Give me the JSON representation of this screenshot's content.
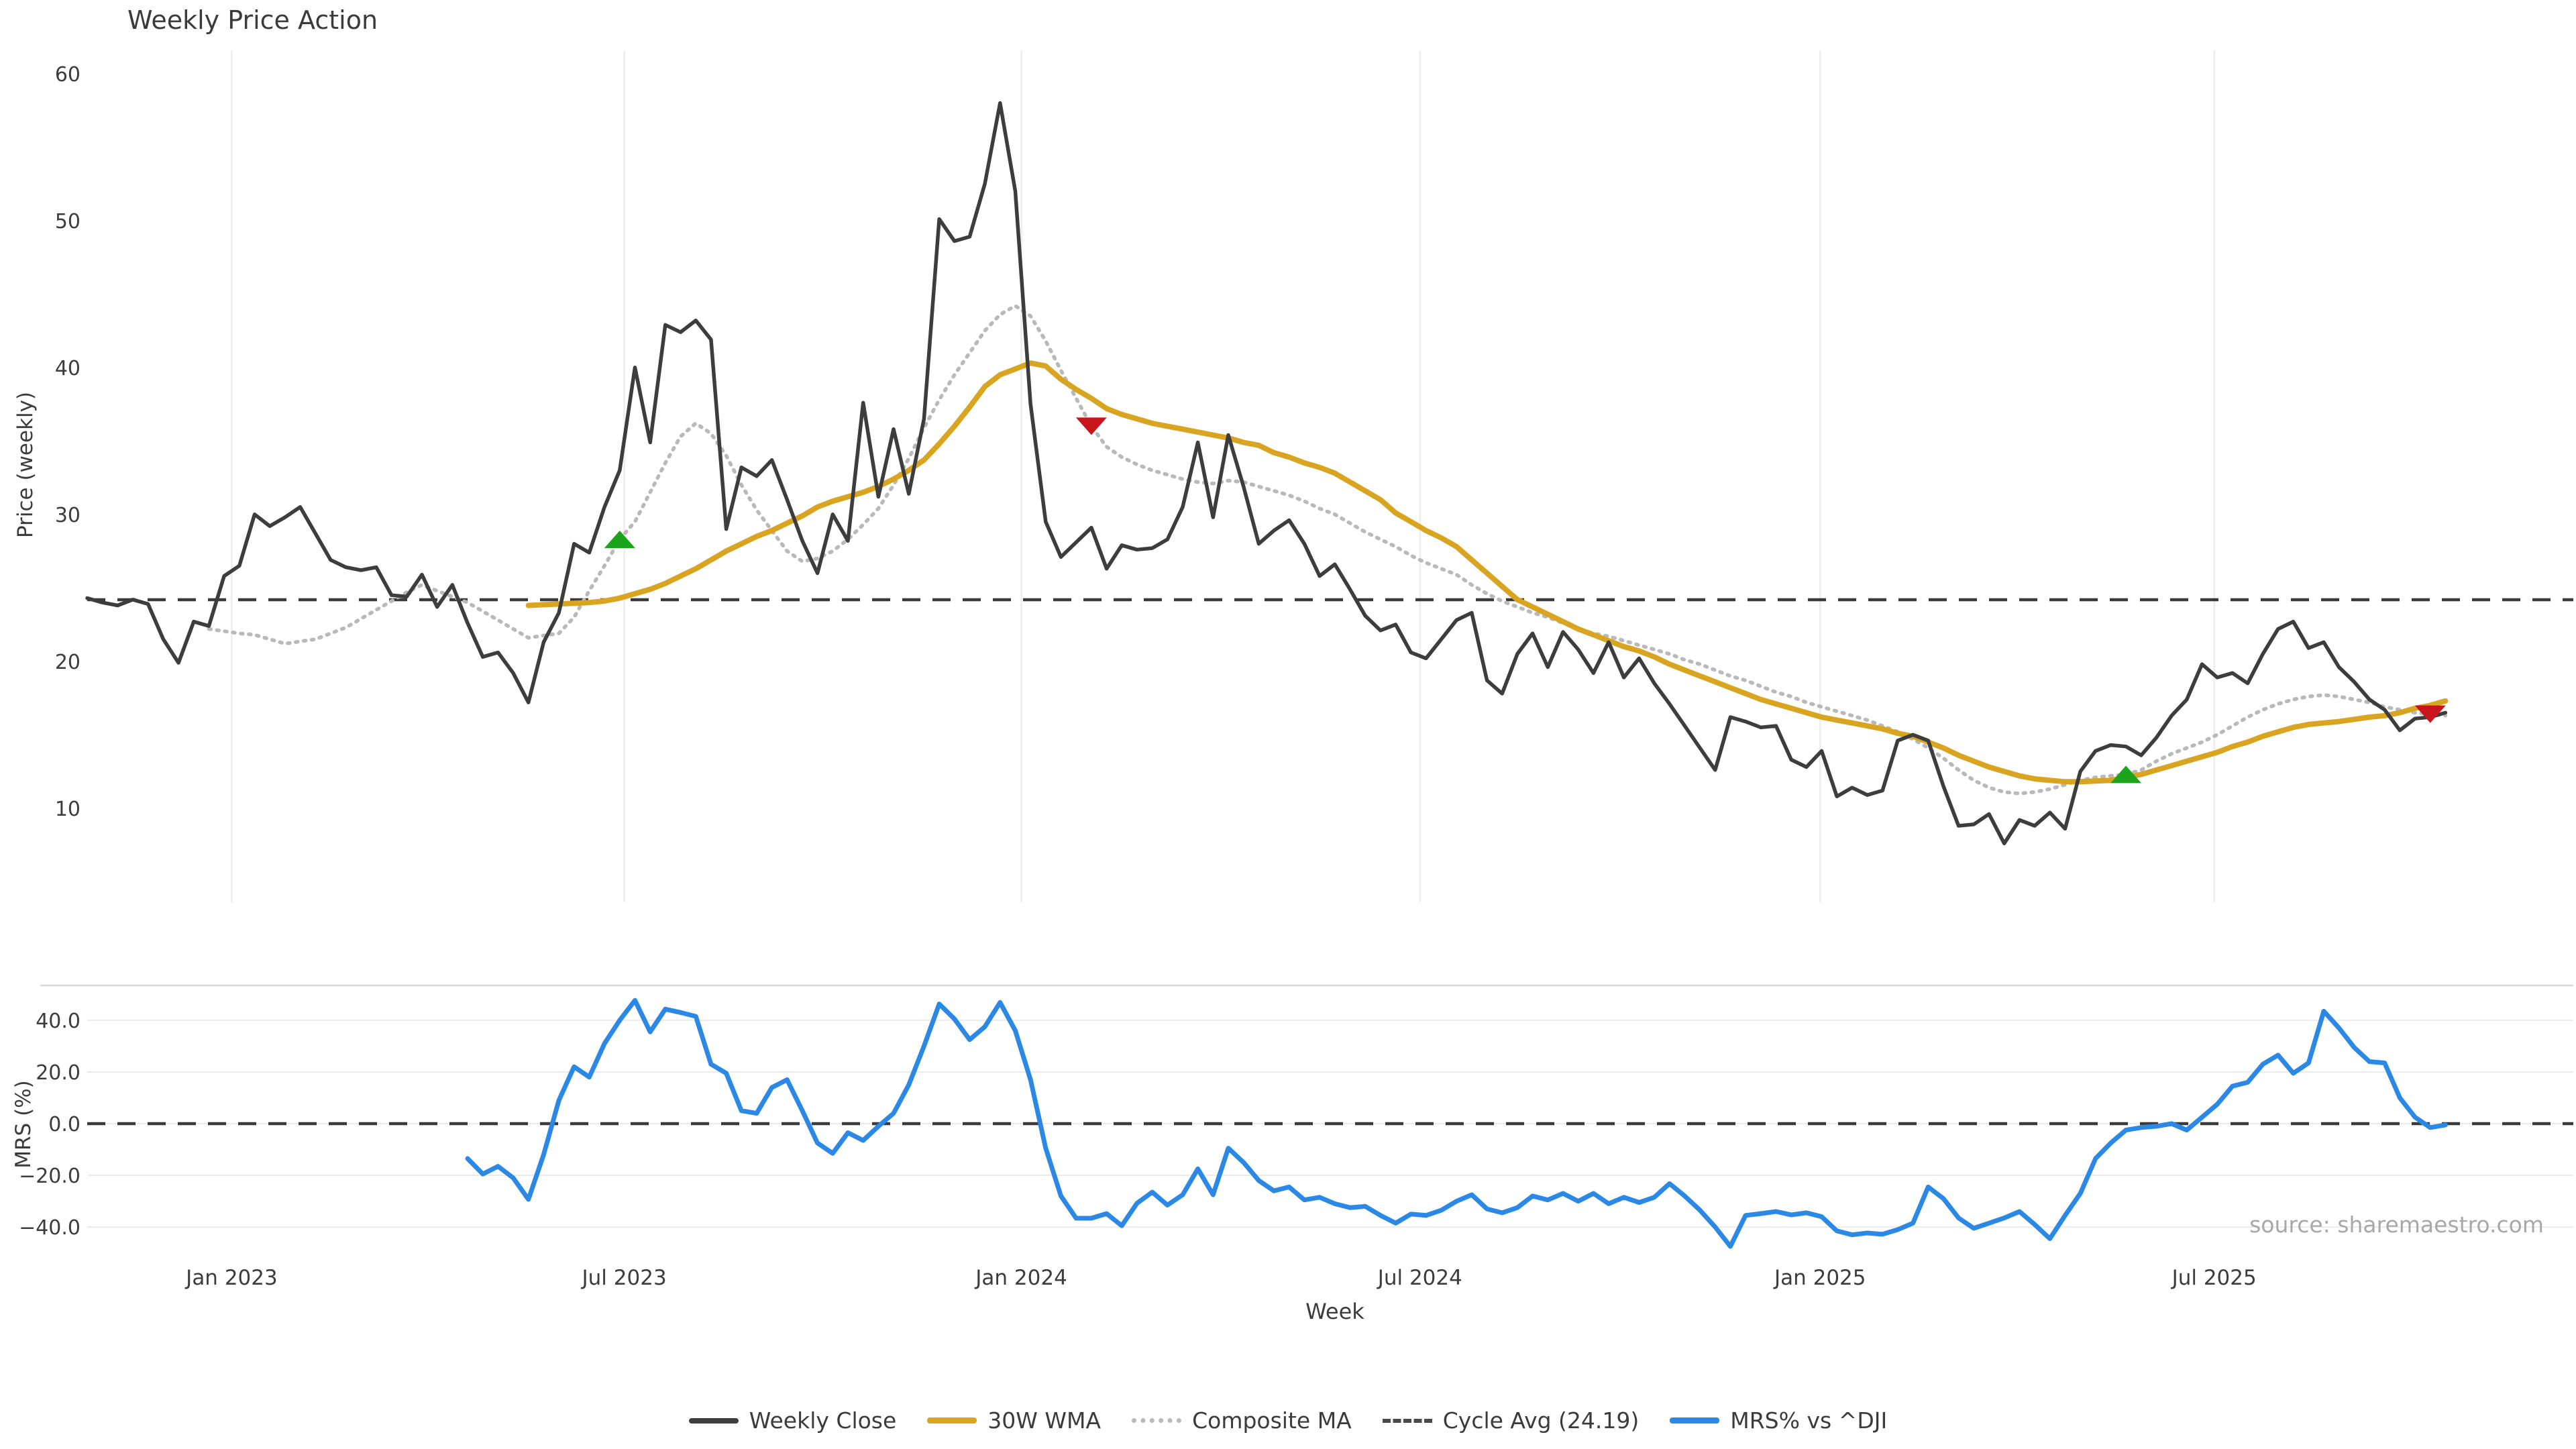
{
  "title": "Weekly Price Action",
  "top_panel": {
    "y_axis_label": "Price (weekly)",
    "y_ticks": [
      "60",
      "50",
      "40",
      "30",
      "20",
      "10"
    ],
    "y_tick_values": [
      60,
      50,
      40,
      30,
      20,
      10
    ]
  },
  "bottom_panel": {
    "y_axis_label": "MRS (%)",
    "y_ticks": [
      "40.0",
      "20.0",
      "0.0",
      "−20.0",
      "−40.0"
    ],
    "y_tick_values": [
      40,
      20,
      0,
      -20,
      -40
    ]
  },
  "x_axis": {
    "label": "Week",
    "ticks": [
      {
        "label": "Jan 2023",
        "week": 9.5
      },
      {
        "label": "Jul 2023",
        "week": 35.3
      },
      {
        "label": "Jan 2024",
        "week": 61.4
      },
      {
        "label": "Jul 2024",
        "week": 87.6
      },
      {
        "label": "Jan 2025",
        "week": 113.9
      },
      {
        "label": "Jul 2025",
        "week": 139.8
      }
    ]
  },
  "source": "source: sharemaestro.com",
  "legend": {
    "items": [
      {
        "label": "Weekly Close",
        "color": "#3d3d3d",
        "style": "solid"
      },
      {
        "label": "30W WMA",
        "color": "#d9a521",
        "style": "solid"
      },
      {
        "label": "Composite MA",
        "color": "#b9b9b9",
        "style": "dotted"
      },
      {
        "label": "Cycle Avg (24.19)",
        "color": "#4a4a4a",
        "style": "dashed"
      },
      {
        "label": "MRS% vs ^DJI",
        "color": "#2b89e5",
        "style": "solid"
      }
    ]
  },
  "colors": {
    "close": "#3d3d3d",
    "wma": "#d9a521",
    "composite": "#b9b9b9",
    "cycle": "#3a3a3a",
    "mrs": "#2b89e5",
    "buy_marker": "#1ca51c",
    "sell_marker": "#c9141e",
    "gridline": "#ededed",
    "panel_border": "#d8d8d8",
    "tick_text": "#3c3c3c",
    "source_text": "#a8a8a8"
  },
  "chart_data": [
    {
      "type": "line",
      "panel": "price",
      "title": "Weekly Price Action",
      "xlabel": "Week",
      "ylabel": "Price (weekly)",
      "x_unit": "week",
      "start_date": "2022-10-24",
      "weeks_total": 156,
      "ylim": [
        3.5,
        61.5
      ],
      "grid": "vertical-only",
      "cycle_avg": 24.19,
      "series": [
        {
          "name": "Weekly Close",
          "start_week": 0,
          "values": [
            24.3,
            24.0,
            23.8,
            24.2,
            23.9,
            21.5,
            19.9,
            22.7,
            22.4,
            25.8,
            26.5,
            30.0,
            29.2,
            29.8,
            30.5,
            28.7,
            26.9,
            26.4,
            26.2,
            26.4,
            24.5,
            24.4,
            25.9,
            23.7,
            25.2,
            22.6,
            20.3,
            20.6,
            19.2,
            17.2,
            21.3,
            23.3,
            28.0,
            27.4,
            30.5,
            33.0,
            40.0,
            34.9,
            42.9,
            42.4,
            43.2,
            41.9,
            29.0,
            33.2,
            32.6,
            33.7,
            31.0,
            28.2,
            26.0,
            30.0,
            28.2,
            37.6,
            31.2,
            35.8,
            31.4,
            36.5,
            50.1,
            48.6,
            48.9,
            52.5,
            58.0,
            52.0,
            37.5,
            29.5,
            27.1,
            28.1,
            29.1,
            26.3,
            27.9,
            27.6,
            27.7,
            28.3,
            30.5,
            34.9,
            29.8,
            35.4,
            31.9,
            28.0,
            28.9,
            29.6,
            28.0,
            25.8,
            26.6,
            24.9,
            23.1,
            22.1,
            22.5,
            20.6,
            20.2,
            21.5,
            22.8,
            23.3,
            18.7,
            17.8,
            20.5,
            21.9,
            19.6,
            22.0,
            20.8,
            19.2,
            21.3,
            18.9,
            20.2,
            18.5,
            17.1,
            15.6,
            14.1,
            12.6,
            16.2,
            15.9,
            15.5,
            15.6,
            13.3,
            12.8,
            13.9,
            10.8,
            11.4,
            10.9,
            11.2,
            14.6,
            15.0,
            14.6,
            11.5,
            8.8,
            8.9,
            9.6,
            7.6,
            9.2,
            8.8,
            9.7,
            8.6,
            12.5,
            13.9,
            14.3,
            14.2,
            13.6,
            14.8,
            16.3,
            17.4,
            19.8,
            18.9,
            19.2,
            18.5,
            20.5,
            22.2,
            22.7,
            20.9,
            21.3,
            19.6,
            18.6,
            17.4,
            16.7,
            15.3,
            16.1,
            16.2,
            16.5
          ]
        },
        {
          "name": "30W WMA",
          "start_week": 29,
          "values": [
            23.8,
            23.85,
            23.9,
            23.95,
            24.0,
            24.1,
            24.3,
            24.6,
            24.9,
            25.3,
            25.8,
            26.3,
            26.9,
            27.5,
            28.0,
            28.5,
            28.9,
            29.4,
            29.9,
            30.5,
            30.9,
            31.2,
            31.5,
            31.9,
            32.4,
            33.0,
            33.7,
            34.8,
            36.0,
            37.3,
            38.7,
            39.5,
            39.9,
            40.3,
            40.1,
            39.2,
            38.5,
            37.9,
            37.2,
            36.8,
            36.5,
            36.2,
            36.0,
            35.8,
            35.6,
            35.4,
            35.2,
            34.9,
            34.7,
            34.2,
            33.9,
            33.5,
            33.2,
            32.8,
            32.2,
            31.6,
            31.0,
            30.1,
            29.5,
            28.9,
            28.4,
            27.8,
            26.9,
            26.0,
            25.1,
            24.2,
            23.7,
            23.2,
            22.7,
            22.2,
            21.8,
            21.4,
            21.0,
            20.7,
            20.3,
            19.8,
            19.4,
            19.0,
            18.6,
            18.2,
            17.8,
            17.4,
            17.1,
            16.8,
            16.5,
            16.2,
            16.0,
            15.8,
            15.6,
            15.4,
            15.1,
            14.9,
            14.5,
            14.1,
            13.6,
            13.2,
            12.8,
            12.5,
            12.2,
            12.0,
            11.9,
            11.8,
            11.8,
            11.85,
            11.9,
            12.1,
            12.3,
            12.6,
            12.9,
            13.2,
            13.5,
            13.8,
            14.2,
            14.5,
            14.9,
            15.2,
            15.5,
            15.7,
            15.8,
            15.9,
            16.05,
            16.2,
            16.3,
            16.5,
            16.8,
            17.0,
            17.3
          ]
        },
        {
          "name": "Composite MA",
          "start_week": 8,
          "values": [
            22.2,
            22.05,
            21.9,
            21.8,
            21.5,
            21.2,
            21.35,
            21.5,
            21.9,
            22.3,
            22.9,
            23.5,
            24.1,
            24.7,
            25.2,
            24.8,
            24.4,
            24.0,
            23.4,
            22.8,
            22.2,
            21.6,
            21.75,
            21.9,
            23.0,
            24.8,
            26.5,
            28.3,
            29.5,
            31.5,
            33.5,
            35.3,
            36.2,
            35.5,
            34.0,
            32.0,
            30.3,
            28.9,
            27.5,
            26.8,
            27.0,
            27.5,
            28.3,
            29.3,
            30.4,
            32.0,
            33.8,
            35.9,
            37.8,
            39.5,
            41.0,
            42.5,
            43.6,
            44.2,
            43.5,
            41.8,
            39.8,
            37.9,
            36.0,
            34.6,
            33.9,
            33.4,
            33.0,
            32.7,
            32.4,
            32.2,
            32.1,
            32.3,
            32.2,
            31.9,
            31.6,
            31.3,
            30.9,
            30.4,
            30.0,
            29.4,
            28.8,
            28.3,
            27.8,
            27.2,
            26.7,
            26.3,
            25.9,
            25.2,
            24.6,
            24.1,
            23.7,
            23.3,
            23.0,
            22.6,
            22.2,
            21.9,
            21.7,
            21.4,
            21.1,
            20.8,
            20.5,
            20.1,
            19.8,
            19.4,
            19.0,
            18.7,
            18.3,
            17.9,
            17.6,
            17.2,
            16.9,
            16.6,
            16.3,
            16.0,
            15.6,
            15.2,
            14.7,
            14.1,
            13.4,
            12.6,
            11.9,
            11.4,
            11.1,
            11.0,
            11.1,
            11.3,
            11.6,
            11.9,
            12.1,
            12.2,
            12.3,
            12.6,
            13.2,
            13.7,
            14.1,
            14.5,
            15.0,
            15.6,
            16.2,
            16.7,
            17.1,
            17.4,
            17.6,
            17.7,
            17.6,
            17.4,
            17.2,
            16.9,
            16.7,
            16.5,
            16.4,
            16.3
          ]
        }
      ],
      "markers": [
        {
          "type": "buy",
          "shape": "triangle-up",
          "week": 35,
          "value": 28.3
        },
        {
          "type": "sell",
          "shape": "triangle-down",
          "week": 66,
          "value": 36.0
        },
        {
          "type": "buy",
          "shape": "triangle-up",
          "week": 134,
          "value": 12.3
        },
        {
          "type": "sell",
          "shape": "triangle-down",
          "week": 154,
          "value": 16.4
        }
      ]
    },
    {
      "type": "line",
      "panel": "mrs",
      "ylabel": "MRS (%)",
      "zero_line": 0,
      "ylim": [
        -52,
        53
      ],
      "grid": "horizontal-only",
      "yticks": [
        40,
        20,
        0,
        -20,
        -40
      ],
      "series": [
        {
          "name": "MRS% vs ^DJI",
          "start_week": 25,
          "values": [
            -13.5,
            -19.5,
            -16.5,
            -21,
            -29.3,
            -12,
            9,
            22,
            18,
            31,
            40,
            47.7,
            35.5,
            44.3,
            43,
            41.5,
            23,
            19.5,
            5,
            4,
            14,
            17,
            5,
            -7.5,
            -11.5,
            -3.5,
            -6.5,
            -1,
            4,
            15,
            30,
            46.3,
            40.5,
            32.5,
            37.5,
            46.9,
            36,
            17,
            -9.5,
            -28,
            -36.6,
            -36.6,
            -34.8,
            -39.5,
            -30.8,
            -26.5,
            -31.5,
            -27.5,
            -17.5,
            -27.5,
            -9.5,
            -15,
            -22,
            -26,
            -24.5,
            -29.5,
            -28.5,
            -31,
            -32.5,
            -32,
            -35.5,
            -38.5,
            -35,
            -35.5,
            -33.5,
            -30,
            -27.5,
            -33,
            -34.5,
            -32.5,
            -28,
            -29.5,
            -27,
            -30,
            -27,
            -31,
            -28.5,
            -30.5,
            -28.5,
            -23.2,
            -28,
            -33.5,
            -40,
            -47.5,
            -35.5,
            -34.8,
            -34,
            -35.3,
            -34.5,
            -36,
            -41.5,
            -43,
            -42.3,
            -42.8,
            -41,
            -38.5,
            -24.5,
            -29,
            -36.5,
            -40.5,
            -38.5,
            -36.5,
            -34,
            -39,
            -44.5,
            -35.5,
            -27,
            -13.5,
            -7.5,
            -2.5,
            -1.5,
            -1,
            0,
            -2.5,
            2.5,
            7.5,
            14.5,
            16,
            23,
            26.5,
            19.5,
            23.5,
            43.5,
            37,
            29.5,
            24,
            23.5,
            10,
            2.5,
            -1.5,
            -0.5
          ]
        }
      ]
    }
  ]
}
